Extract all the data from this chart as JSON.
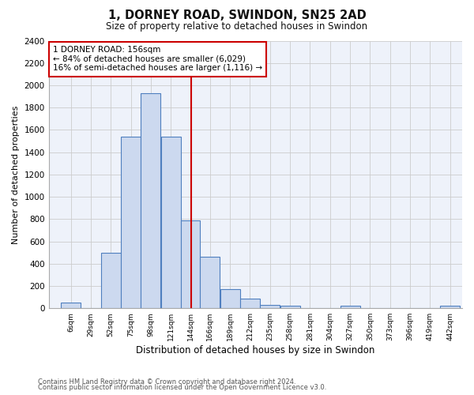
{
  "title": "1, DORNEY ROAD, SWINDON, SN25 2AD",
  "subtitle": "Size of property relative to detached houses in Swindon",
  "xlabel": "Distribution of detached houses by size in Swindon",
  "ylabel": "Number of detached properties",
  "bin_edges": [
    6,
    29,
    52,
    75,
    98,
    121,
    144,
    166,
    189,
    212,
    235,
    258,
    281,
    304,
    327,
    350,
    373,
    396,
    419,
    442,
    465
  ],
  "bin_counts": [
    50,
    0,
    500,
    1540,
    1930,
    1540,
    790,
    460,
    175,
    90,
    30,
    20,
    0,
    0,
    20,
    0,
    0,
    0,
    0,
    20
  ],
  "bar_facecolor": "#ccd9ef",
  "bar_edgecolor": "#4f7fbf",
  "vline_x": 156,
  "vline_color": "#cc0000",
  "annotation_text": "1 DORNEY ROAD: 156sqm\n← 84% of detached houses are smaller (6,029)\n16% of semi-detached houses are larger (1,116) →",
  "annotation_bbox_edgecolor": "#cc0000",
  "annotation_bbox_facecolor": "#ffffff",
  "ylim": [
    0,
    2400
  ],
  "yticks": [
    0,
    200,
    400,
    600,
    800,
    1000,
    1200,
    1400,
    1600,
    1800,
    2000,
    2200,
    2400
  ],
  "grid_color": "#cccccc",
  "plot_bg_color": "#eef2fa",
  "fig_bg_color": "#ffffff",
  "footer_line1": "Contains HM Land Registry data © Crown copyright and database right 2024.",
  "footer_line2": "Contains public sector information licensed under the Open Government Licence v3.0."
}
